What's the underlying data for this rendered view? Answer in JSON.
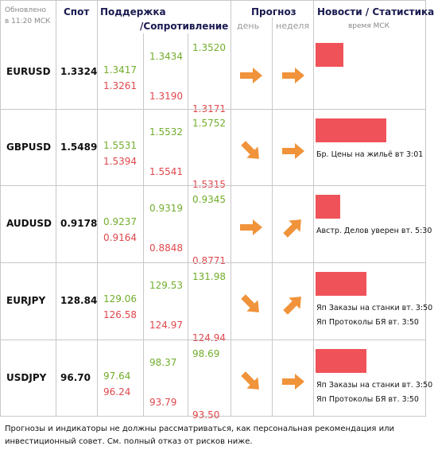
{
  "header": {
    "updated": [
      "Обновлено",
      "в 11:20 МСК"
    ],
    "spot": "Спот",
    "support": "Поддержка",
    "resistance": "/Сопротивление",
    "forecast": "Прогноз",
    "day": "день",
    "week": "неделя",
    "news": "Новости / Статистика",
    "time": "время МСК"
  },
  "table": {
    "rows": [
      {
        "pair": "EURUSD",
        "spot": "1.3324",
        "levels": [
          "1.3417",
          "1.3261",
          "1.3434",
          "1.3190",
          "1.3520",
          "1.3171"
        ],
        "news": []
      },
      {
        "pair": "GBPUSD",
        "spot": "1.5489",
        "levels": [
          "1.5531",
          "1.5394",
          "1.5532",
          "1.5541",
          "1.5752",
          "1.5315"
        ],
        "news": [
          "Бр. Цены на жильё вт 3:01"
        ]
      },
      {
        "pair": "AUDUSD",
        "spot": "0.9178",
        "levels": [
          "0.9237",
          "0.9164",
          "0.9319",
          "0.8848",
          "0.9345",
          "0.8771"
        ],
        "news": [
          "Австр. Делов уверен вт. 5:30"
        ]
      },
      {
        "pair": "EURJPY",
        "spot": "128.84",
        "levels": [
          "129.06",
          "126.58",
          "129.53",
          "124.97",
          "131.98",
          "124.94"
        ],
        "news": [
          "Яп Заказы на станки вт. 3:50",
          "Яп Протоколы БЯ вт. 3:50"
        ]
      },
      {
        "pair": "USDJPY",
        "spot": "96.70",
        "levels": [
          "97.64",
          "96.24",
          "98.37",
          "93.79",
          "98.69",
          "93.50"
        ],
        "news": [
          "Яп Заказы на станки вт. 3:50",
          "Яп Протоколы БЯ вт. 3:50"
        ]
      }
    ]
  },
  "footer": "Прогнозы и индикаторы не должны рассматриваться, как персональная рекомендация или инвестиционный совет. См. полный отказ от рисков ниже."
}
